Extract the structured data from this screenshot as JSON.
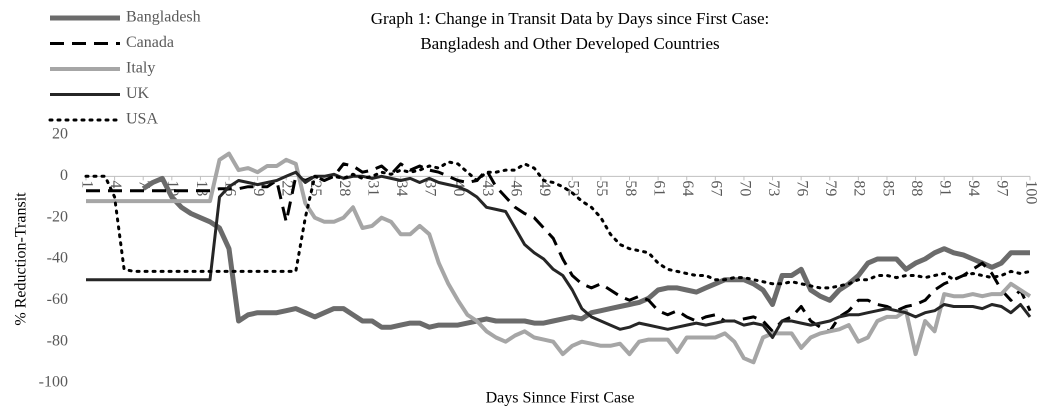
{
  "chart_data": {
    "type": "line",
    "title": [
      "Graph 1: Change in Transit Data by Days since First Case:",
      "Bangladesh and Other Developed Countries"
    ],
    "x_label": "Days Sinnce First Case",
    "y_label": "% Reduction-Transit",
    "xlim": [
      1,
      100
    ],
    "ylim": [
      -100,
      20
    ],
    "yticks": [
      -100,
      -80,
      -60,
      -40,
      -20,
      0,
      20
    ],
    "xticks": [
      1,
      4,
      7,
      10,
      13,
      16,
      19,
      22,
      25,
      28,
      31,
      34,
      37,
      40,
      43,
      46,
      49,
      52,
      55,
      58,
      61,
      64,
      67,
      70,
      73,
      76,
      79,
      82,
      85,
      88,
      91,
      94,
      97,
      100
    ],
    "legend": "top-left",
    "x": [
      1,
      2,
      3,
      4,
      5,
      6,
      7,
      8,
      9,
      10,
      11,
      12,
      13,
      14,
      15,
      16,
      17,
      18,
      19,
      20,
      21,
      22,
      23,
      24,
      25,
      26,
      27,
      28,
      29,
      30,
      31,
      32,
      33,
      34,
      35,
      36,
      37,
      38,
      39,
      40,
      41,
      42,
      43,
      44,
      45,
      46,
      47,
      48,
      49,
      50,
      51,
      52,
      53,
      54,
      55,
      56,
      57,
      58,
      59,
      60,
      61,
      62,
      63,
      64,
      65,
      66,
      67,
      68,
      69,
      70,
      71,
      72,
      73,
      74,
      75,
      76,
      77,
      78,
      79,
      80,
      81,
      82,
      83,
      84,
      85,
      86,
      87,
      88,
      89,
      90,
      91,
      92,
      93,
      94,
      95,
      96,
      97,
      98,
      99,
      100
    ],
    "series": [
      {
        "name": "Bangladesh",
        "color": "#6b6b6b",
        "width": 5,
        "dash": "solid",
        "values": [
          null,
          null,
          null,
          null,
          null,
          null,
          -6,
          -3,
          -1,
          -10,
          -15,
          -18,
          -20,
          -22,
          -25,
          -35,
          -70,
          -67,
          -66,
          -66,
          -66,
          -65,
          -64,
          -66,
          -68,
          -66,
          -64,
          -64,
          -67,
          -70,
          -70,
          -73,
          -73,
          -72,
          -71,
          -71,
          -73,
          -72,
          -72,
          -72,
          -71,
          -70,
          -69,
          -70,
          -70,
          -70,
          -70,
          -71,
          -71,
          -70,
          -69,
          -68,
          -69,
          -66,
          -65,
          -64,
          -63,
          -62,
          -61,
          -59,
          -55,
          -54,
          -54,
          -55,
          -56,
          -54,
          -52,
          -50,
          -50,
          -50,
          -52,
          -55,
          -62,
          -48,
          -48,
          -45,
          -55,
          -58,
          -60,
          -55,
          -52,
          -48,
          -42,
          -40,
          -40,
          -40,
          -45,
          -42,
          -40,
          -37,
          -35,
          -37,
          -38,
          -40,
          -42,
          -44,
          -42,
          -37,
          -37,
          -37
        ]
      },
      {
        "name": "Canada",
        "color": "#000000",
        "width": 3,
        "dash": "dashed",
        "values": [
          -7,
          -7,
          -7,
          -7,
          -7,
          -7,
          -7,
          -7,
          -7,
          -7,
          -7,
          -7,
          -7,
          -7,
          -6,
          -6,
          -6,
          -5,
          -5,
          -5,
          -2,
          -22,
          0,
          -2,
          0,
          -2,
          0,
          6,
          5,
          2,
          3,
          5,
          1,
          6,
          3,
          5,
          3,
          2,
          0,
          -2,
          -3,
          -2,
          3,
          -5,
          -10,
          -15,
          -18,
          -20,
          -25,
          -30,
          -40,
          -48,
          -52,
          -54,
          -52,
          -55,
          -58,
          -60,
          -58,
          -60,
          -65,
          -67,
          -65,
          -68,
          -70,
          -68,
          -67,
          -70,
          -70,
          -69,
          -68,
          -70,
          -75,
          -70,
          -68,
          -63,
          -70,
          -73,
          -75,
          -68,
          -65,
          -60,
          -60,
          -62,
          -63,
          -65,
          -63,
          -62,
          -60,
          -55,
          -52,
          -50,
          -48,
          -45,
          -42,
          -47,
          -55,
          -60,
          -55,
          -65
        ]
      },
      {
        "name": "Italy",
        "color": "#a6a6a6",
        "width": 4,
        "dash": "solid",
        "values": [
          -12,
          -12,
          -12,
          -12,
          -12,
          -12,
          -12,
          -12,
          -12,
          -12,
          -12,
          -12,
          -12,
          -12,
          8,
          11,
          3,
          4,
          2,
          5,
          5,
          8,
          6,
          -13,
          -20,
          -22,
          -22,
          -20,
          -15,
          -25,
          -24,
          -20,
          -22,
          -28,
          -28,
          -24,
          -28,
          -42,
          -52,
          -60,
          -67,
          -70,
          -75,
          -78,
          -80,
          -77,
          -75,
          -78,
          -79,
          -80,
          -86,
          -82,
          -80,
          -81,
          -82,
          -82,
          -81,
          -86,
          -80,
          -79,
          -79,
          -79,
          -85,
          -78,
          -78,
          -78,
          -78,
          -76,
          -80,
          -88,
          -90,
          -78,
          -76,
          -76,
          -76,
          -83,
          -78,
          -76,
          -75,
          -74,
          -72,
          -80,
          -78,
          -70,
          -68,
          -68,
          -65,
          -86,
          -70,
          -75,
          -57,
          -58,
          -58,
          -57,
          -58,
          -57,
          -57,
          -52,
          -55,
          -58
        ]
      },
      {
        "name": "UK",
        "color": "#262626",
        "width": 3,
        "dash": "solid",
        "values": [
          -50,
          -50,
          -50,
          -50,
          -50,
          -50,
          -50,
          -50,
          -50,
          -50,
          -50,
          -50,
          -50,
          -50,
          -10,
          -5,
          -2,
          -3,
          -4,
          -3,
          -2,
          0,
          2,
          -3,
          0,
          0,
          1,
          -1,
          0,
          0,
          -1,
          0,
          -1,
          -2,
          -1,
          -3,
          -1,
          -3,
          -4,
          -5,
          -7,
          -10,
          -15,
          -16,
          -17,
          -25,
          -33,
          -37,
          -40,
          -45,
          -48,
          -55,
          -64,
          -68,
          -70,
          -72,
          -74,
          -73,
          -71,
          -72,
          -73,
          -74,
          -73,
          -72,
          -71,
          -72,
          -71,
          -70,
          -70,
          -72,
          -71,
          -72,
          -78,
          -70,
          -70,
          -71,
          -72,
          -71,
          -70,
          -68,
          -67,
          -67,
          -66,
          -65,
          -64,
          -65,
          -66,
          -68,
          -66,
          -65,
          -62,
          -63,
          -63,
          -63,
          -64,
          -62,
          -63,
          -66,
          -62,
          -68
        ]
      },
      {
        "name": "USA",
        "color": "#000000",
        "width": 3,
        "dash": "dotted",
        "values": [
          0,
          0,
          0,
          -10,
          -45,
          -46,
          -46,
          -46,
          -46,
          -46,
          -46,
          -46,
          -46,
          -46,
          -46,
          -46,
          -46,
          -46,
          -46,
          -46,
          -46,
          -46,
          -46,
          -20,
          0,
          -2,
          0,
          -1,
          1,
          -1,
          0,
          2,
          1,
          3,
          2,
          3,
          5,
          4,
          7,
          6,
          2,
          -2,
          2,
          2,
          3,
          3,
          6,
          4,
          -2,
          -3,
          -5,
          -8,
          -12,
          -15,
          -20,
          -28,
          -33,
          -35,
          -36,
          -37,
          -42,
          -45,
          -46,
          -47,
          -48,
          -48,
          -50,
          -50,
          -49,
          -49,
          -50,
          -51,
          -52,
          -52,
          -51,
          -52,
          -53,
          -54,
          -54,
          -53,
          -52,
          -50,
          -50,
          -48,
          -48,
          -49,
          -48,
          -48,
          -49,
          -48,
          -47,
          -50,
          -48,
          -47,
          -48,
          -49,
          -48,
          -46,
          -47,
          -46
        ]
      }
    ]
  }
}
